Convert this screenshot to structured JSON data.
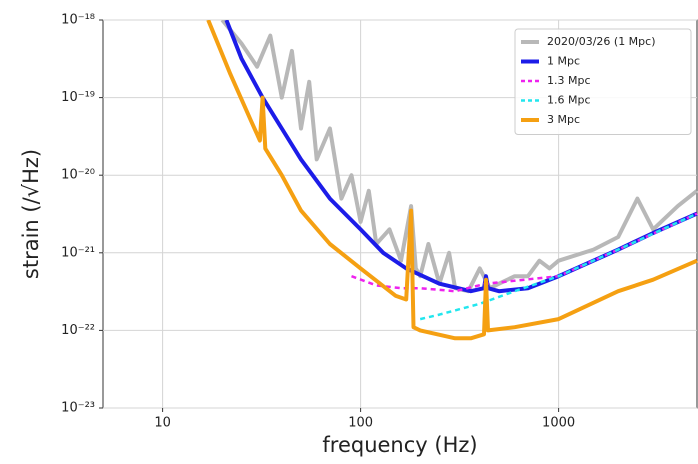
{
  "chart_data": {
    "type": "line",
    "x_label": "frequency (Hz)",
    "y_label": "strain (/√Hz)",
    "xscale": "log",
    "yscale": "log",
    "xlim": [
      5,
      5000
    ],
    "ylim": [
      1e-23,
      1e-18
    ],
    "xticks": [
      10,
      100,
      1000
    ],
    "yticks": [
      {
        "value": 1e-23,
        "label": "10⁻²³"
      },
      {
        "value": 1e-22,
        "label": "10⁻²²"
      },
      {
        "value": 1e-21,
        "label": "10⁻²¹"
      },
      {
        "value": 1e-20,
        "label": "10⁻²⁰"
      },
      {
        "value": 1e-19,
        "label": "10⁻¹⁹"
      },
      {
        "value": 1e-18,
        "label": "10⁻¹⁸"
      }
    ],
    "grid": true,
    "legend": "upper right",
    "series": [
      {
        "name": "2020/03/26 (1 Mpc)",
        "color": "#b8b8b8",
        "linestyle": "solid",
        "x": [
          20,
          25,
          30,
          35,
          40,
          45,
          50,
          55,
          60,
          70,
          80,
          90,
          100,
          110,
          120,
          140,
          160,
          180,
          190,
          200,
          220,
          250,
          280,
          300,
          350,
          400,
          450,
          500,
          600,
          700,
          800,
          900,
          1000,
          1500,
          2000,
          2500,
          3000,
          4000,
          5000
        ],
        "values": [
          1e-18,
          5e-19,
          2.5e-19,
          6.3e-19,
          1e-19,
          4e-19,
          4e-20,
          1.6e-19,
          1.6e-20,
          4e-20,
          5e-21,
          1e-20,
          2.5e-21,
          6.3e-21,
          1.3e-21,
          2e-21,
          7.9e-22,
          4e-21,
          6.3e-22,
          5e-22,
          1.3e-21,
          4e-22,
          1e-21,
          3.5e-22,
          3.2e-22,
          6.3e-22,
          3.5e-22,
          4e-22,
          5e-22,
          5e-22,
          7.9e-22,
          6.3e-22,
          7.9e-22,
          1.1e-21,
          1.6e-21,
          5e-21,
          2e-21,
          4e-21,
          6.3e-21
        ]
      },
      {
        "name": "1 Mpc",
        "color": "#1c1ce8",
        "linestyle": "solid",
        "x": [
          21,
          25,
          32,
          40,
          50,
          70,
          100,
          130,
          170,
          250,
          360,
          420,
          430,
          440,
          500,
          700,
          1000,
          2000,
          3000,
          5000
        ],
        "values": [
          1e-18,
          3.2e-19,
          1e-19,
          4e-20,
          1.6e-20,
          5e-21,
          2e-21,
          1e-21,
          6.3e-22,
          4e-22,
          3.2e-22,
          3.5e-22,
          5e-22,
          3.5e-22,
          3.2e-22,
          3.5e-22,
          5e-22,
          1.1e-21,
          1.8e-21,
          3.2e-21
        ]
      },
      {
        "name": "1.3 Mpc",
        "color": "#ee22ee",
        "linestyle": "dashed",
        "x": [
          90,
          120,
          160,
          200,
          300,
          430,
          1000,
          2000,
          5000
        ],
        "values": [
          5e-22,
          3.8e-22,
          3.5e-22,
          3.5e-22,
          3.2e-22,
          4e-22,
          5e-22,
          1.1e-21,
          3.2e-21
        ]
      },
      {
        "name": "1.6 Mpc",
        "color": "#22e6ee",
        "linestyle": "dashed",
        "x": [
          200,
          250,
          400,
          600,
          1000,
          2000,
          5000
        ],
        "values": [
          1.4e-22,
          1.6e-22,
          2.2e-22,
          3.2e-22,
          5e-22,
          1.1e-21,
          3.2e-21
        ]
      },
      {
        "name": "3 Mpc",
        "color": "#f5a012",
        "linestyle": "solid",
        "x": [
          17,
          22,
          28,
          31,
          32,
          33,
          40,
          50,
          70,
          100,
          150,
          170,
          180,
          185,
          200,
          300,
          360,
          420,
          430,
          440,
          600,
          1000,
          2000,
          3000,
          5000
        ],
        "values": [
          1e-18,
          2e-19,
          5e-20,
          2.8e-20,
          1e-19,
          2.2e-20,
          1e-20,
          3.5e-21,
          1.3e-21,
          6.3e-22,
          2.8e-22,
          2.5e-22,
          3.5e-21,
          1.1e-22,
          1e-22,
          7.9e-23,
          7.9e-23,
          8.9e-23,
          4.5e-22,
          1e-22,
          1.1e-22,
          1.4e-22,
          3.2e-22,
          4.5e-22,
          7.9e-22
        ]
      }
    ]
  }
}
